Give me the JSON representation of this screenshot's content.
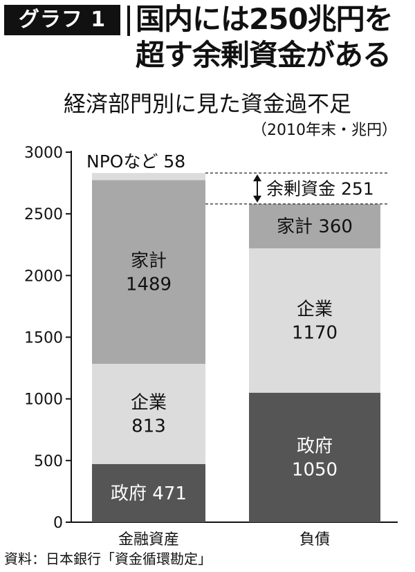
{
  "badge": "グラフ 1",
  "headline": [
    "国内には250兆円を",
    "超す余剰資金がある"
  ],
  "chart_data": {
    "type": "bar",
    "stacked": true,
    "title": "経済部門別に見た資金過不足",
    "unit": "（2010年末・兆円）",
    "categories": [
      "金融資産",
      "負債"
    ],
    "ylim": [
      0,
      3000
    ],
    "yticks": [
      0,
      500,
      1000,
      1500,
      2000,
      2500,
      3000
    ],
    "grid": false,
    "segments": [
      [
        {
          "name": "政府",
          "value": 471,
          "label": "政府 471",
          "color": "#555555",
          "text_color": "#ffffff"
        },
        {
          "name": "企業",
          "value": 813,
          "label": "企業\n813",
          "color": "#dcdcdc",
          "text_color": "#111111"
        },
        {
          "name": "家計",
          "value": 1489,
          "label": "家計\n1489",
          "color": "#a8a8a8",
          "text_color": "#111111"
        },
        {
          "name": "NPO",
          "value": 58,
          "label": "",
          "color": "#dcdcdc",
          "text_color": "#111111"
        }
      ],
      [
        {
          "name": "政府",
          "value": 1050,
          "label": "政府\n1050",
          "color": "#555555",
          "text_color": "#ffffff"
        },
        {
          "name": "企業",
          "value": 1170,
          "label": "企業\n1170",
          "color": "#dcdcdc",
          "text_color": "#111111"
        },
        {
          "name": "家計",
          "value": 360,
          "label": "家計 360",
          "color": "#a8a8a8",
          "text_color": "#111111"
        }
      ]
    ],
    "annotations": [
      {
        "text": "NPOなど 58"
      },
      {
        "text": "余剰資金 251",
        "value": 251
      }
    ]
  },
  "source": "資料：日本銀行「資金循環勘定」"
}
